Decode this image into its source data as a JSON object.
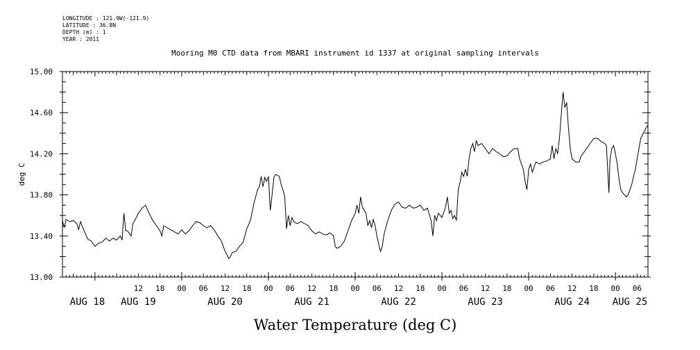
{
  "meta": {
    "longitude": "LONGITUDE : 121.9W(-121.9)",
    "latitude": "LATITUDE : 36.8N",
    "depth": "DEPTH (m) : 1",
    "year": "YEAR : 2011"
  },
  "chart_data": {
    "type": "line",
    "title": "Mooring M0 CTD data from MBARI instrument id 1337 at original sampling intervals",
    "xlabel": "Water Temperature (deg C)",
    "ylabel": "deg C",
    "ylim": [
      13.0,
      15.0
    ],
    "y_ticks": [
      "13.00",
      "13.40",
      "13.80",
      "14.20",
      "14.60",
      "15.00"
    ],
    "x_unit": "hours since AUG 18 00:00 (2011)",
    "xlim": [
      -9,
      153
    ],
    "x_tick_labels": [
      {
        "h": 12,
        "label": "12"
      },
      {
        "h": 18,
        "label": "18"
      },
      {
        "h": 24,
        "label": "00"
      },
      {
        "h": 30,
        "label": "06"
      },
      {
        "h": 36,
        "label": "12"
      },
      {
        "h": 42,
        "label": "18"
      },
      {
        "h": 48,
        "label": "00"
      },
      {
        "h": 54,
        "label": "06"
      },
      {
        "h": 60,
        "label": "12"
      },
      {
        "h": 66,
        "label": "18"
      },
      {
        "h": 72,
        "label": "00"
      },
      {
        "h": 78,
        "label": "06"
      },
      {
        "h": 84,
        "label": "12"
      },
      {
        "h": 90,
        "label": "18"
      },
      {
        "h": 96,
        "label": "00"
      },
      {
        "h": 102,
        "label": "06"
      },
      {
        "h": 108,
        "label": "12"
      },
      {
        "h": 114,
        "label": "18"
      },
      {
        "h": 120,
        "label": "00"
      },
      {
        "h": 126,
        "label": "06"
      },
      {
        "h": 132,
        "label": "12"
      },
      {
        "h": 138,
        "label": "18"
      },
      {
        "h": 144,
        "label": "00"
      },
      {
        "h": 150,
        "label": "06"
      }
    ],
    "day_labels": [
      "AUG 18",
      "AUG 19",
      "AUG 20",
      "AUG 21",
      "AUG 22",
      "AUG 23",
      "AUG 24",
      "AUG 25"
    ],
    "series": [
      {
        "color": "#000000",
        "points": [
          [
            -9.0,
            13.55
          ],
          [
            -8.5,
            13.48
          ],
          [
            -8.0,
            13.56
          ],
          [
            -7.0,
            13.54
          ],
          [
            -6.0,
            13.55
          ],
          [
            -5.0,
            13.52
          ],
          [
            -4.5,
            13.46
          ],
          [
            -4.0,
            13.54
          ],
          [
            -3.0,
            13.45
          ],
          [
            -2.0,
            13.37
          ],
          [
            -1.0,
            13.35
          ],
          [
            0.0,
            13.3
          ],
          [
            1.0,
            13.33
          ],
          [
            2.0,
            13.34
          ],
          [
            3.0,
            13.38
          ],
          [
            4.0,
            13.35
          ],
          [
            5.0,
            13.38
          ],
          [
            6.0,
            13.36
          ],
          [
            7.0,
            13.4
          ],
          [
            7.5,
            13.36
          ],
          [
            8.0,
            13.62
          ],
          [
            8.5,
            13.45
          ],
          [
            9.0,
            13.45
          ],
          [
            10.0,
            13.4
          ],
          [
            10.5,
            13.52
          ],
          [
            11.0,
            13.55
          ],
          [
            12.0,
            13.62
          ],
          [
            13.0,
            13.67
          ],
          [
            14.0,
            13.7
          ],
          [
            15.0,
            13.62
          ],
          [
            16.0,
            13.55
          ],
          [
            17.0,
            13.5
          ],
          [
            18.0,
            13.45
          ],
          [
            18.5,
            13.4
          ],
          [
            19.0,
            13.5
          ],
          [
            20.0,
            13.48
          ],
          [
            21.0,
            13.46
          ],
          [
            22.0,
            13.44
          ],
          [
            23.0,
            13.42
          ],
          [
            24.0,
            13.46
          ],
          [
            25.0,
            13.42
          ],
          [
            26.0,
            13.45
          ],
          [
            27.0,
            13.5
          ],
          [
            28.0,
            13.54
          ],
          [
            29.0,
            13.53
          ],
          [
            30.0,
            13.5
          ],
          [
            31.0,
            13.48
          ],
          [
            32.0,
            13.5
          ],
          [
            33.0,
            13.46
          ],
          [
            34.0,
            13.4
          ],
          [
            35.0,
            13.35
          ],
          [
            35.5,
            13.3
          ],
          [
            36.0,
            13.25
          ],
          [
            36.5,
            13.22
          ],
          [
            37.0,
            13.18
          ],
          [
            37.5,
            13.2
          ],
          [
            38.0,
            13.24
          ],
          [
            39.0,
            13.25
          ],
          [
            40.0,
            13.3
          ],
          [
            41.0,
            13.34
          ],
          [
            42.0,
            13.47
          ],
          [
            43.0,
            13.55
          ],
          [
            44.0,
            13.72
          ],
          [
            45.0,
            13.85
          ],
          [
            45.5,
            13.88
          ],
          [
            46.0,
            13.98
          ],
          [
            46.5,
            13.88
          ],
          [
            47.0,
            13.97
          ],
          [
            47.5,
            13.93
          ],
          [
            48.0,
            13.98
          ],
          [
            48.5,
            13.65
          ],
          [
            49.0,
            13.8
          ],
          [
            49.5,
            13.97
          ],
          [
            50.0,
            14.0
          ],
          [
            51.0,
            13.98
          ],
          [
            51.5,
            13.9
          ],
          [
            52.0,
            13.85
          ],
          [
            52.5,
            13.78
          ],
          [
            53.0,
            13.47
          ],
          [
            53.5,
            13.6
          ],
          [
            54.0,
            13.5
          ],
          [
            54.5,
            13.58
          ],
          [
            55.0,
            13.54
          ],
          [
            56.0,
            13.52
          ],
          [
            57.0,
            13.54
          ],
          [
            58.0,
            13.52
          ],
          [
            59.0,
            13.5
          ],
          [
            60.0,
            13.45
          ],
          [
            61.0,
            13.42
          ],
          [
            62.0,
            13.44
          ],
          [
            63.0,
            13.42
          ],
          [
            64.0,
            13.41
          ],
          [
            65.0,
            13.43
          ],
          [
            66.0,
            13.4
          ],
          [
            66.5,
            13.3
          ],
          [
            67.0,
            13.28
          ],
          [
            68.0,
            13.3
          ],
          [
            69.0,
            13.35
          ],
          [
            70.0,
            13.45
          ],
          [
            71.0,
            13.55
          ],
          [
            72.0,
            13.62
          ],
          [
            72.5,
            13.7
          ],
          [
            73.0,
            13.62
          ],
          [
            73.5,
            13.78
          ],
          [
            74.0,
            13.68
          ],
          [
            75.0,
            13.62
          ],
          [
            75.5,
            13.5
          ],
          [
            76.0,
            13.55
          ],
          [
            76.5,
            13.48
          ],
          [
            77.0,
            13.56
          ],
          [
            77.5,
            13.5
          ],
          [
            78.0,
            13.4
          ],
          [
            78.5,
            13.32
          ],
          [
            79.0,
            13.25
          ],
          [
            79.5,
            13.3
          ],
          [
            80.0,
            13.42
          ],
          [
            81.0,
            13.55
          ],
          [
            82.0,
            13.65
          ],
          [
            83.0,
            13.71
          ],
          [
            84.0,
            13.73
          ],
          [
            85.0,
            13.68
          ],
          [
            86.0,
            13.67
          ],
          [
            87.0,
            13.7
          ],
          [
            88.0,
            13.67
          ],
          [
            89.0,
            13.68
          ],
          [
            90.0,
            13.7
          ],
          [
            91.0,
            13.65
          ],
          [
            92.0,
            13.67
          ],
          [
            93.0,
            13.55
          ],
          [
            93.5,
            13.4
          ],
          [
            94.0,
            13.6
          ],
          [
            94.5,
            13.55
          ],
          [
            95.0,
            13.62
          ],
          [
            96.0,
            13.58
          ],
          [
            97.0,
            13.68
          ],
          [
            97.5,
            13.78
          ],
          [
            98.0,
            13.62
          ],
          [
            98.5,
            13.65
          ],
          [
            99.0,
            13.57
          ],
          [
            99.5,
            13.6
          ],
          [
            100.0,
            13.55
          ],
          [
            100.5,
            13.85
          ],
          [
            101.0,
            13.92
          ],
          [
            101.5,
            14.02
          ],
          [
            102.0,
            13.98
          ],
          [
            102.5,
            14.05
          ],
          [
            103.0,
            13.98
          ],
          [
            103.5,
            14.15
          ],
          [
            104.0,
            14.25
          ],
          [
            104.5,
            14.3
          ],
          [
            105.0,
            14.22
          ],
          [
            105.5,
            14.33
          ],
          [
            106.0,
            14.28
          ],
          [
            107.0,
            14.3
          ],
          [
            108.0,
            14.25
          ],
          [
            109.0,
            14.2
          ],
          [
            110.0,
            14.25
          ],
          [
            111.0,
            14.22
          ],
          [
            112.0,
            14.2
          ],
          [
            113.0,
            14.17
          ],
          [
            114.0,
            14.18
          ],
          [
            115.0,
            14.22
          ],
          [
            116.0,
            14.25
          ],
          [
            117.0,
            14.25
          ],
          [
            117.5,
            14.15
          ],
          [
            118.0,
            14.1
          ],
          [
            118.5,
            14.05
          ],
          [
            119.0,
            13.93
          ],
          [
            119.5,
            13.85
          ],
          [
            120.0,
            14.05
          ],
          [
            120.5,
            14.1
          ],
          [
            121.0,
            14.02
          ],
          [
            122.0,
            14.12
          ],
          [
            123.0,
            14.1
          ],
          [
            124.0,
            14.12
          ],
          [
            125.0,
            14.13
          ],
          [
            126.0,
            14.15
          ],
          [
            126.5,
            14.28
          ],
          [
            127.0,
            14.15
          ],
          [
            127.5,
            14.25
          ],
          [
            128.0,
            14.2
          ],
          [
            128.5,
            14.35
          ],
          [
            129.0,
            14.58
          ],
          [
            129.5,
            14.8
          ],
          [
            130.0,
            14.65
          ],
          [
            130.5,
            14.7
          ],
          [
            131.0,
            14.45
          ],
          [
            131.5,
            14.25
          ],
          [
            132.0,
            14.15
          ],
          [
            133.0,
            14.12
          ],
          [
            134.0,
            14.12
          ],
          [
            134.5,
            14.18
          ],
          [
            135.0,
            14.2
          ],
          [
            136.0,
            14.25
          ],
          [
            137.0,
            14.3
          ],
          [
            138.0,
            14.35
          ],
          [
            139.0,
            14.35
          ],
          [
            140.0,
            14.32
          ],
          [
            141.0,
            14.3
          ],
          [
            141.5,
            14.28
          ],
          [
            142.0,
            13.95
          ],
          [
            142.2,
            13.82
          ],
          [
            142.5,
            14.15
          ],
          [
            143.0,
            14.25
          ],
          [
            143.5,
            14.28
          ],
          [
            144.0,
            14.2
          ],
          [
            144.5,
            14.1
          ],
          [
            145.0,
            13.95
          ],
          [
            145.5,
            13.85
          ],
          [
            146.0,
            13.82
          ],
          [
            147.0,
            13.78
          ],
          [
            147.5,
            13.8
          ],
          [
            148.0,
            13.85
          ],
          [
            148.5,
            13.9
          ],
          [
            149.0,
            13.98
          ],
          [
            149.5,
            14.05
          ],
          [
            150.0,
            14.15
          ],
          [
            151.0,
            14.35
          ],
          [
            152.0,
            14.42
          ],
          [
            153.0,
            14.48
          ]
        ]
      }
    ]
  }
}
